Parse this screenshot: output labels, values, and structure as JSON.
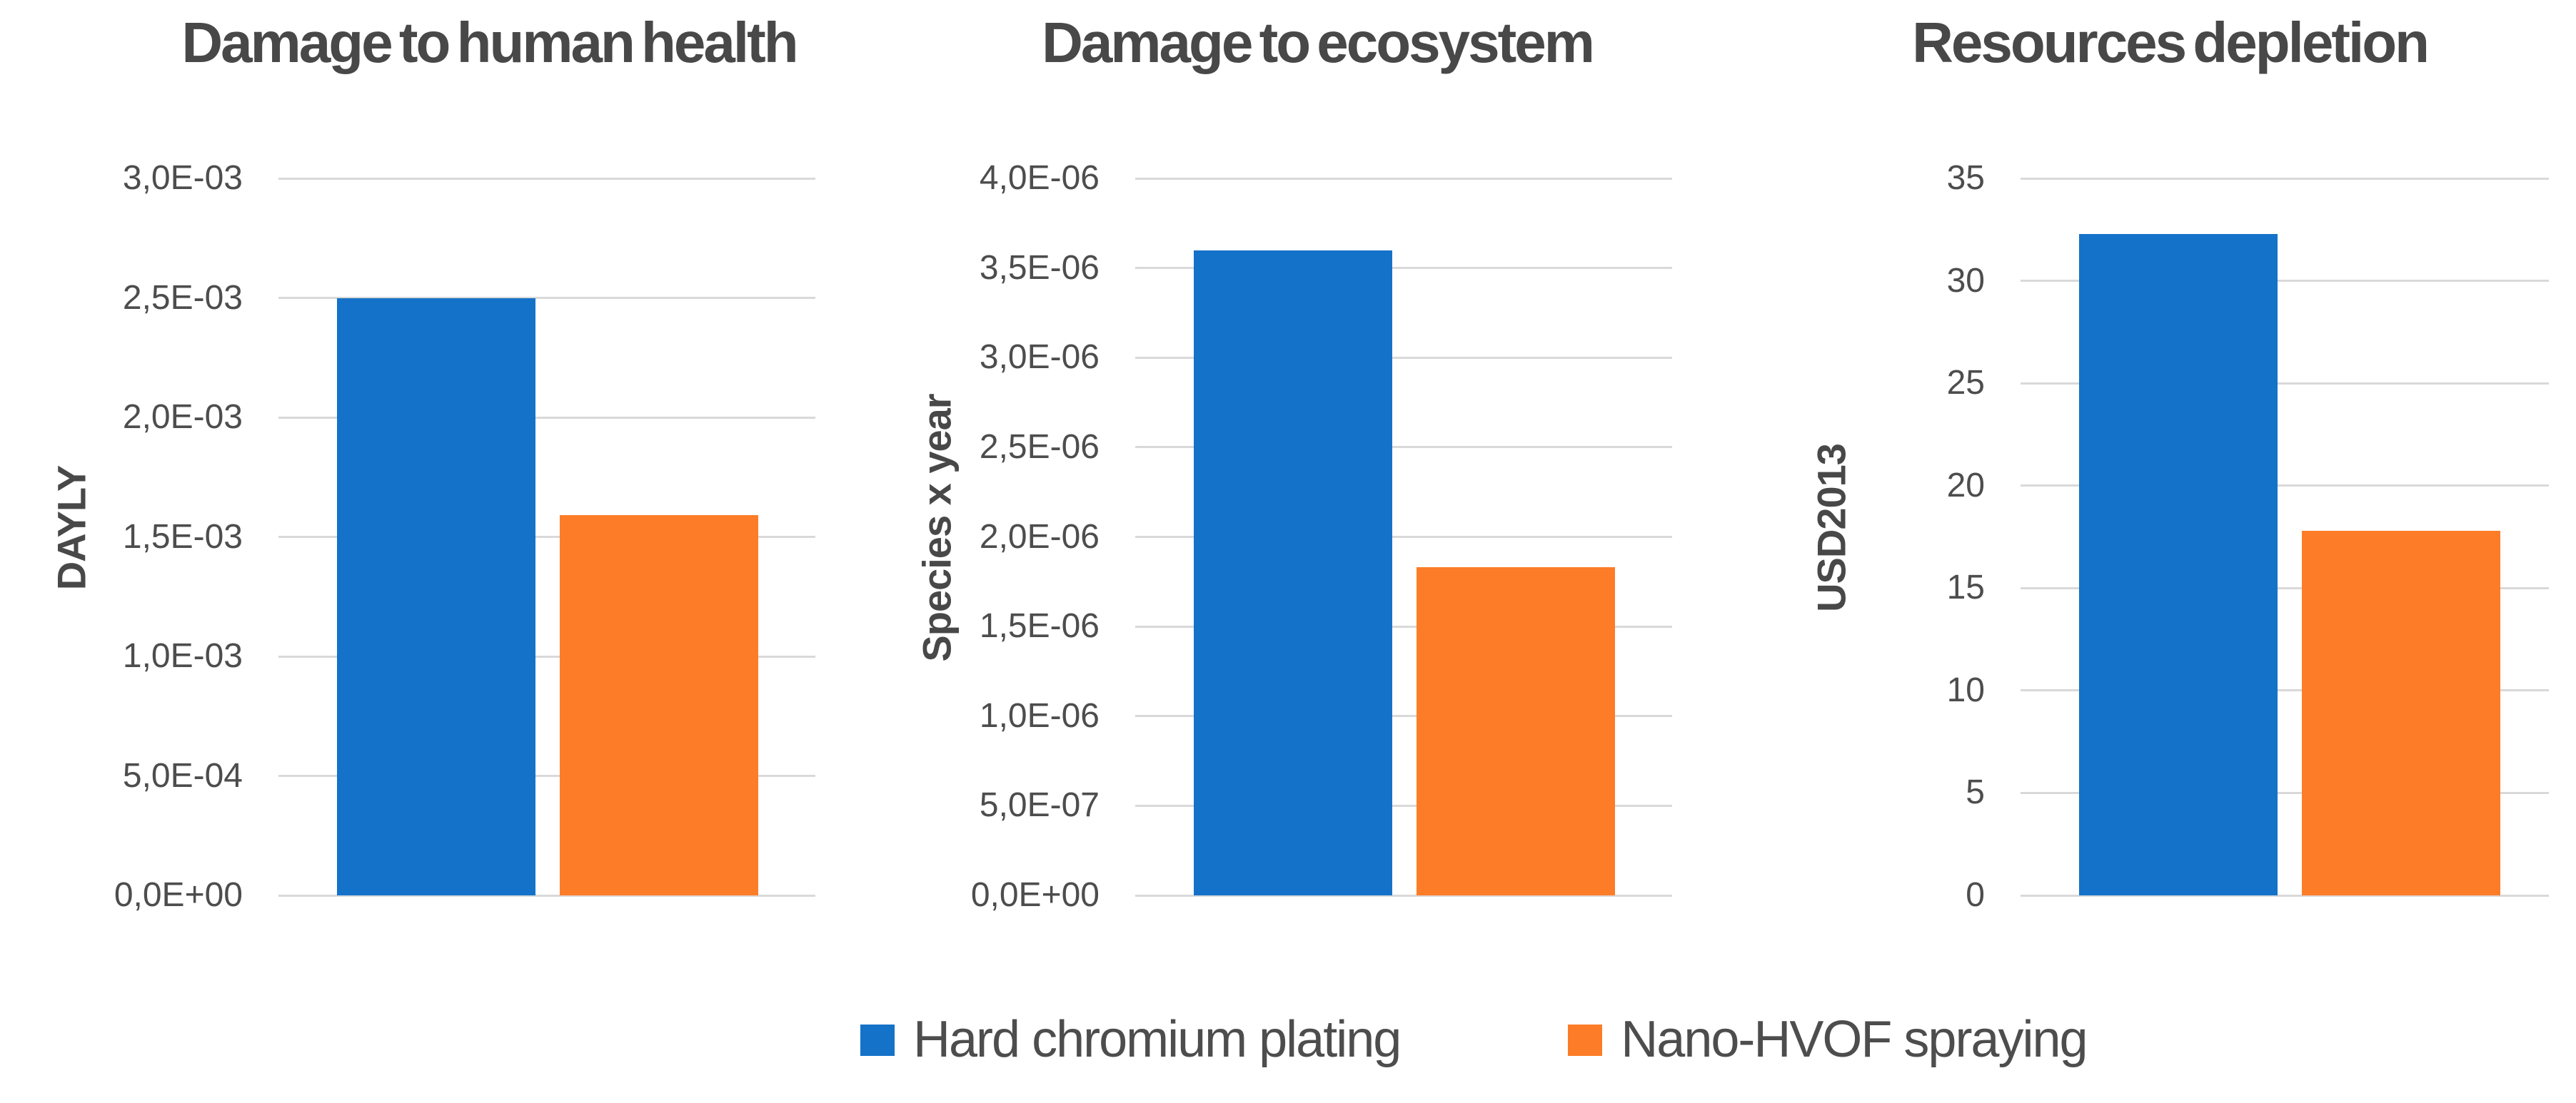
{
  "figure": {
    "description": "Comparison of environmental impacts: Hard chromium plating vs Nano-HVOF spraying",
    "background": "#ffffff"
  },
  "colors": {
    "series": [
      "#1572c9",
      "#fd7c28"
    ],
    "title_text": "#484848",
    "tick_text": "#4d4d4d",
    "gridline": "#d9d9d9"
  },
  "legend": {
    "position": "bottom",
    "items": [
      {
        "label": "Hard chromium plating",
        "series_index": 0
      },
      {
        "label": "Nano-HVOF spraying",
        "series_index": 1
      }
    ]
  },
  "chart_data": [
    {
      "type": "bar",
      "title": "Damage to human health",
      "xlabel": "",
      "ylabel": "DAYLY",
      "categories": [
        "Hard chromium plating",
        "Nano-HVOF spraying"
      ],
      "values": [
        0.0025,
        0.00159
      ],
      "ylim": [
        0,
        0.003
      ],
      "ytick_labels": [
        "0,0E+00",
        "5,0E-04",
        "1,0E-03",
        "1,5E-03",
        "2,0E-03",
        "2,5E-03",
        "3,0E-03"
      ],
      "grid": true,
      "legend_position": "shared-bottom"
    },
    {
      "type": "bar",
      "title": "Damage to ecosystem",
      "xlabel": "",
      "ylabel": "Species x year",
      "categories": [
        "Hard chromium plating",
        "Nano-HVOF spraying"
      ],
      "values": [
        3.6e-06,
        1.83e-06
      ],
      "ylim": [
        0,
        4e-06
      ],
      "ytick_labels": [
        "0,0E+00",
        "5,0E-07",
        "1,0E-06",
        "1,5E-06",
        "2,0E-06",
        "2,5E-06",
        "3,0E-06",
        "3,5E-06",
        "4,0E-06"
      ],
      "grid": true,
      "legend_position": "shared-bottom"
    },
    {
      "type": "bar",
      "title": "Resources depletion",
      "xlabel": "",
      "ylabel": "USD2013",
      "categories": [
        "Hard chromium plating",
        "Nano-HVOF spraying"
      ],
      "values": [
        32.3,
        17.8
      ],
      "ylim": [
        0,
        35
      ],
      "ytick_labels": [
        "0",
        "5",
        "10",
        "15",
        "20",
        "25",
        "30",
        "35"
      ],
      "grid": true,
      "legend_position": "shared-bottom"
    }
  ]
}
